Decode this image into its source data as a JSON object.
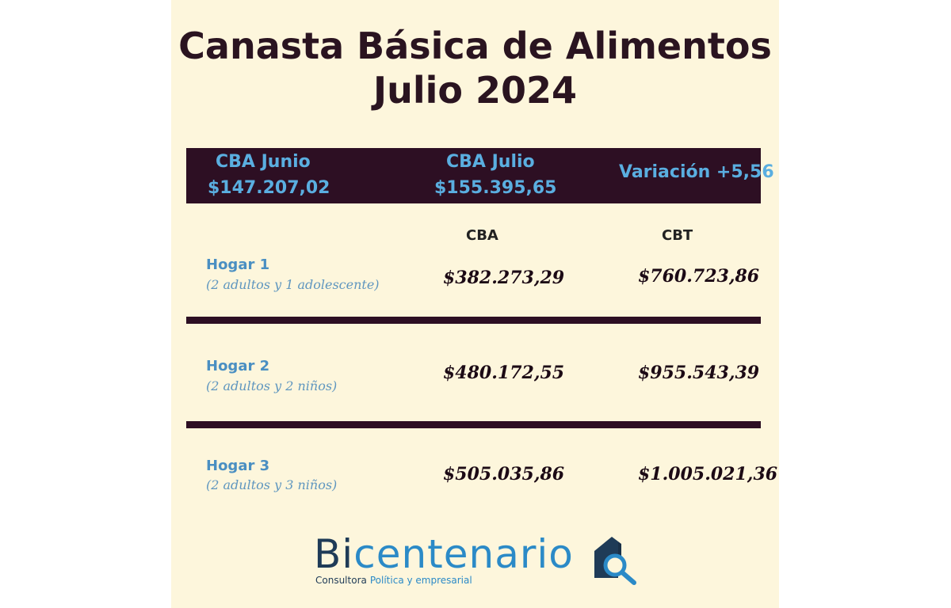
{
  "title": {
    "line1": "Canasta Básica de Alimentos",
    "line2": "Julio 2024"
  },
  "summary": {
    "junio_label": "CBA Junio",
    "junio_value": "$147.207,02",
    "julio_label": "CBA Julio",
    "julio_value": "$155.395,65",
    "variacion": "Variación +5,56"
  },
  "columns": {
    "cba": "CBA",
    "cbt": "CBT"
  },
  "hogares": [
    {
      "name": "Hogar 1",
      "desc": "(2 adultos y 1 adolescente)",
      "cba": "$382.273,29",
      "cbt": "$760.723,86"
    },
    {
      "name": "Hogar 2",
      "desc": "(2 adultos y 2 niños)",
      "cba": "$480.172,55",
      "cbt": "$955.543,39"
    },
    {
      "name": "Hogar 3",
      "desc": "(2 adultos y 3 niños)",
      "cba": "$505.035,86",
      "cbt": "$1.005.021,36"
    }
  ],
  "logo": {
    "bi": "Bi",
    "rest": "centenario",
    "sub_a": "Consultora",
    "sub_b": "Política y empresarial",
    "icon": "house-magnifier-icon"
  },
  "colors": {
    "background": "#fdf6dc",
    "band": "#2d0f23",
    "accent_blue": "#5aaee0",
    "title": "#2a1420"
  }
}
